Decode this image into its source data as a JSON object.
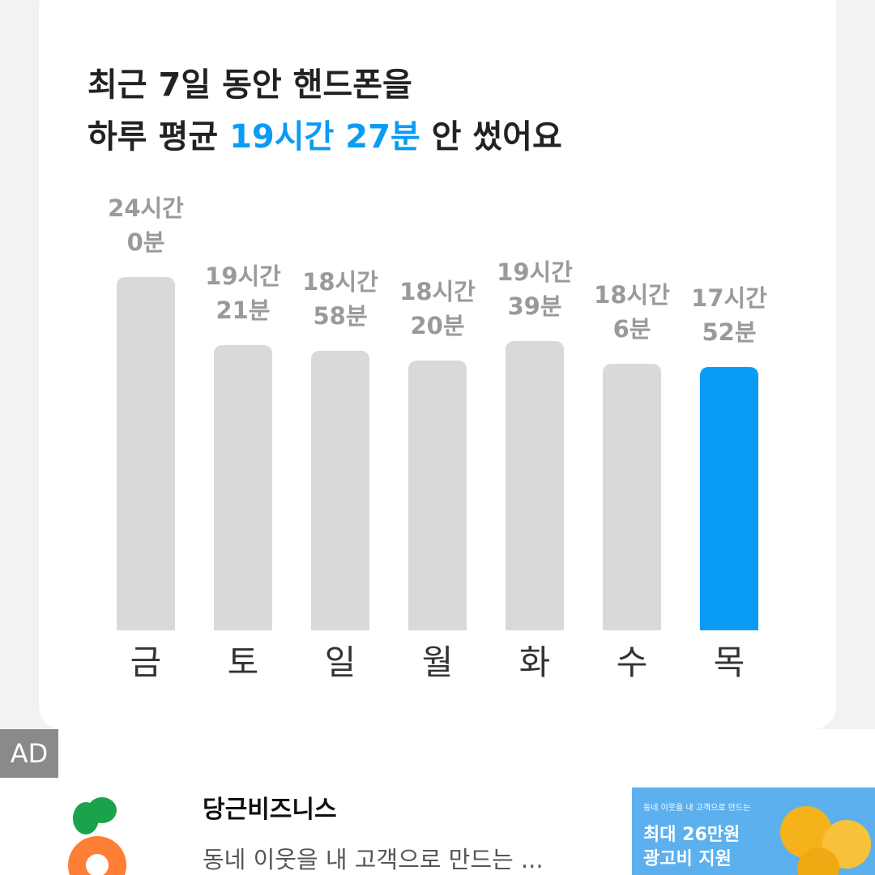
{
  "header": {
    "title_line1": "최근 7일 동안 핸드폰을",
    "title_prefix": "하루 평균 ",
    "title_highlight": "19시간 27분",
    "title_suffix": " 안 썼어요"
  },
  "chart_data": {
    "type": "bar",
    "categories": [
      "금",
      "토",
      "일",
      "월",
      "화",
      "수",
      "목"
    ],
    "values": [
      24,
      19.35,
      18.9667,
      18.3333,
      19.65,
      18.1,
      17.8667
    ],
    "value_labels": [
      "24시간\n0분",
      "19시간\n21분",
      "18시간\n58분",
      "18시간\n20분",
      "19시간\n39분",
      "18시간\n6분",
      "17시간\n52분"
    ],
    "colors": [
      "#d9d9d9",
      "#d9d9d9",
      "#d9d9d9",
      "#d9d9d9",
      "#d9d9d9",
      "#d9d9d9",
      "#0a9cf5"
    ],
    "ylim": [
      0,
      24
    ]
  },
  "ad": {
    "badge": "AD",
    "title": "당근비즈니스",
    "description": "동네 이웃을 내 고객으로 만드는 ...",
    "banner_small": "동네 이웃을 내 고객으로 만드는",
    "banner_line1": "최대 26만원",
    "banner_line2": "광고비 지원"
  }
}
